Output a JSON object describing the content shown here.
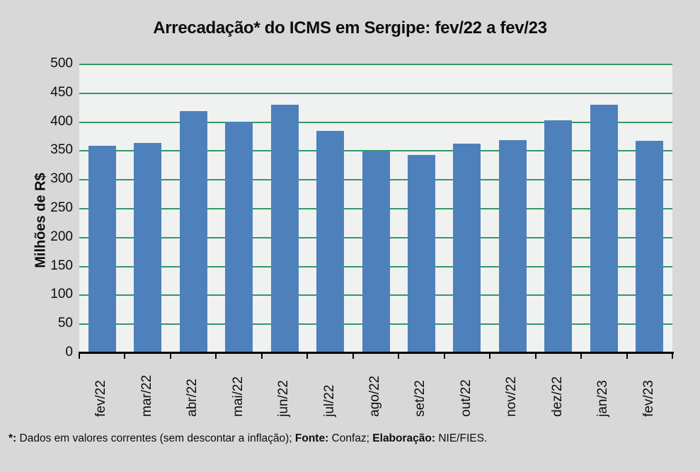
{
  "title": "Arrecadação* do ICMS em Sergipe: fev/22 a fev/23",
  "footnote": {
    "segments": [
      {
        "text": "*:",
        "bold": true
      },
      {
        "text": " Dados em valores correntes (sem descontar a inflação); ",
        "bold": false
      },
      {
        "text": "Fonte:",
        "bold": true
      },
      {
        "text": " Confaz; ",
        "bold": false
      },
      {
        "text": "Elaboração:",
        "bold": true
      },
      {
        "text": " NIE/FIES.",
        "bold": false
      }
    ]
  },
  "colors": {
    "background": "#d8d8d8",
    "plot_background": "#f0f1f1",
    "bar": "#4e81bc",
    "gridline": "#339966",
    "axis": "#000000",
    "text": "#0d0d0d"
  },
  "chart_data": {
    "type": "bar",
    "title": "Arrecadação* do ICMS em Sergipe: fev/22 a fev/23",
    "categories": [
      "fev/22",
      "mar/22",
      "abr/22",
      "mai/22",
      "jun/22",
      "jul/22",
      "ago/22",
      "set/22",
      "out/22",
      "nov/22",
      "dez/22",
      "jan/23",
      "fev/23"
    ],
    "values": [
      358,
      363,
      418,
      399,
      429,
      383,
      348,
      342,
      361,
      368,
      402,
      429,
      367
    ],
    "xlabel": "",
    "ylabel": "Milhões de R$",
    "ylim": [
      0,
      500
    ],
    "ytick_step": 50,
    "grid": true,
    "legend": false
  }
}
